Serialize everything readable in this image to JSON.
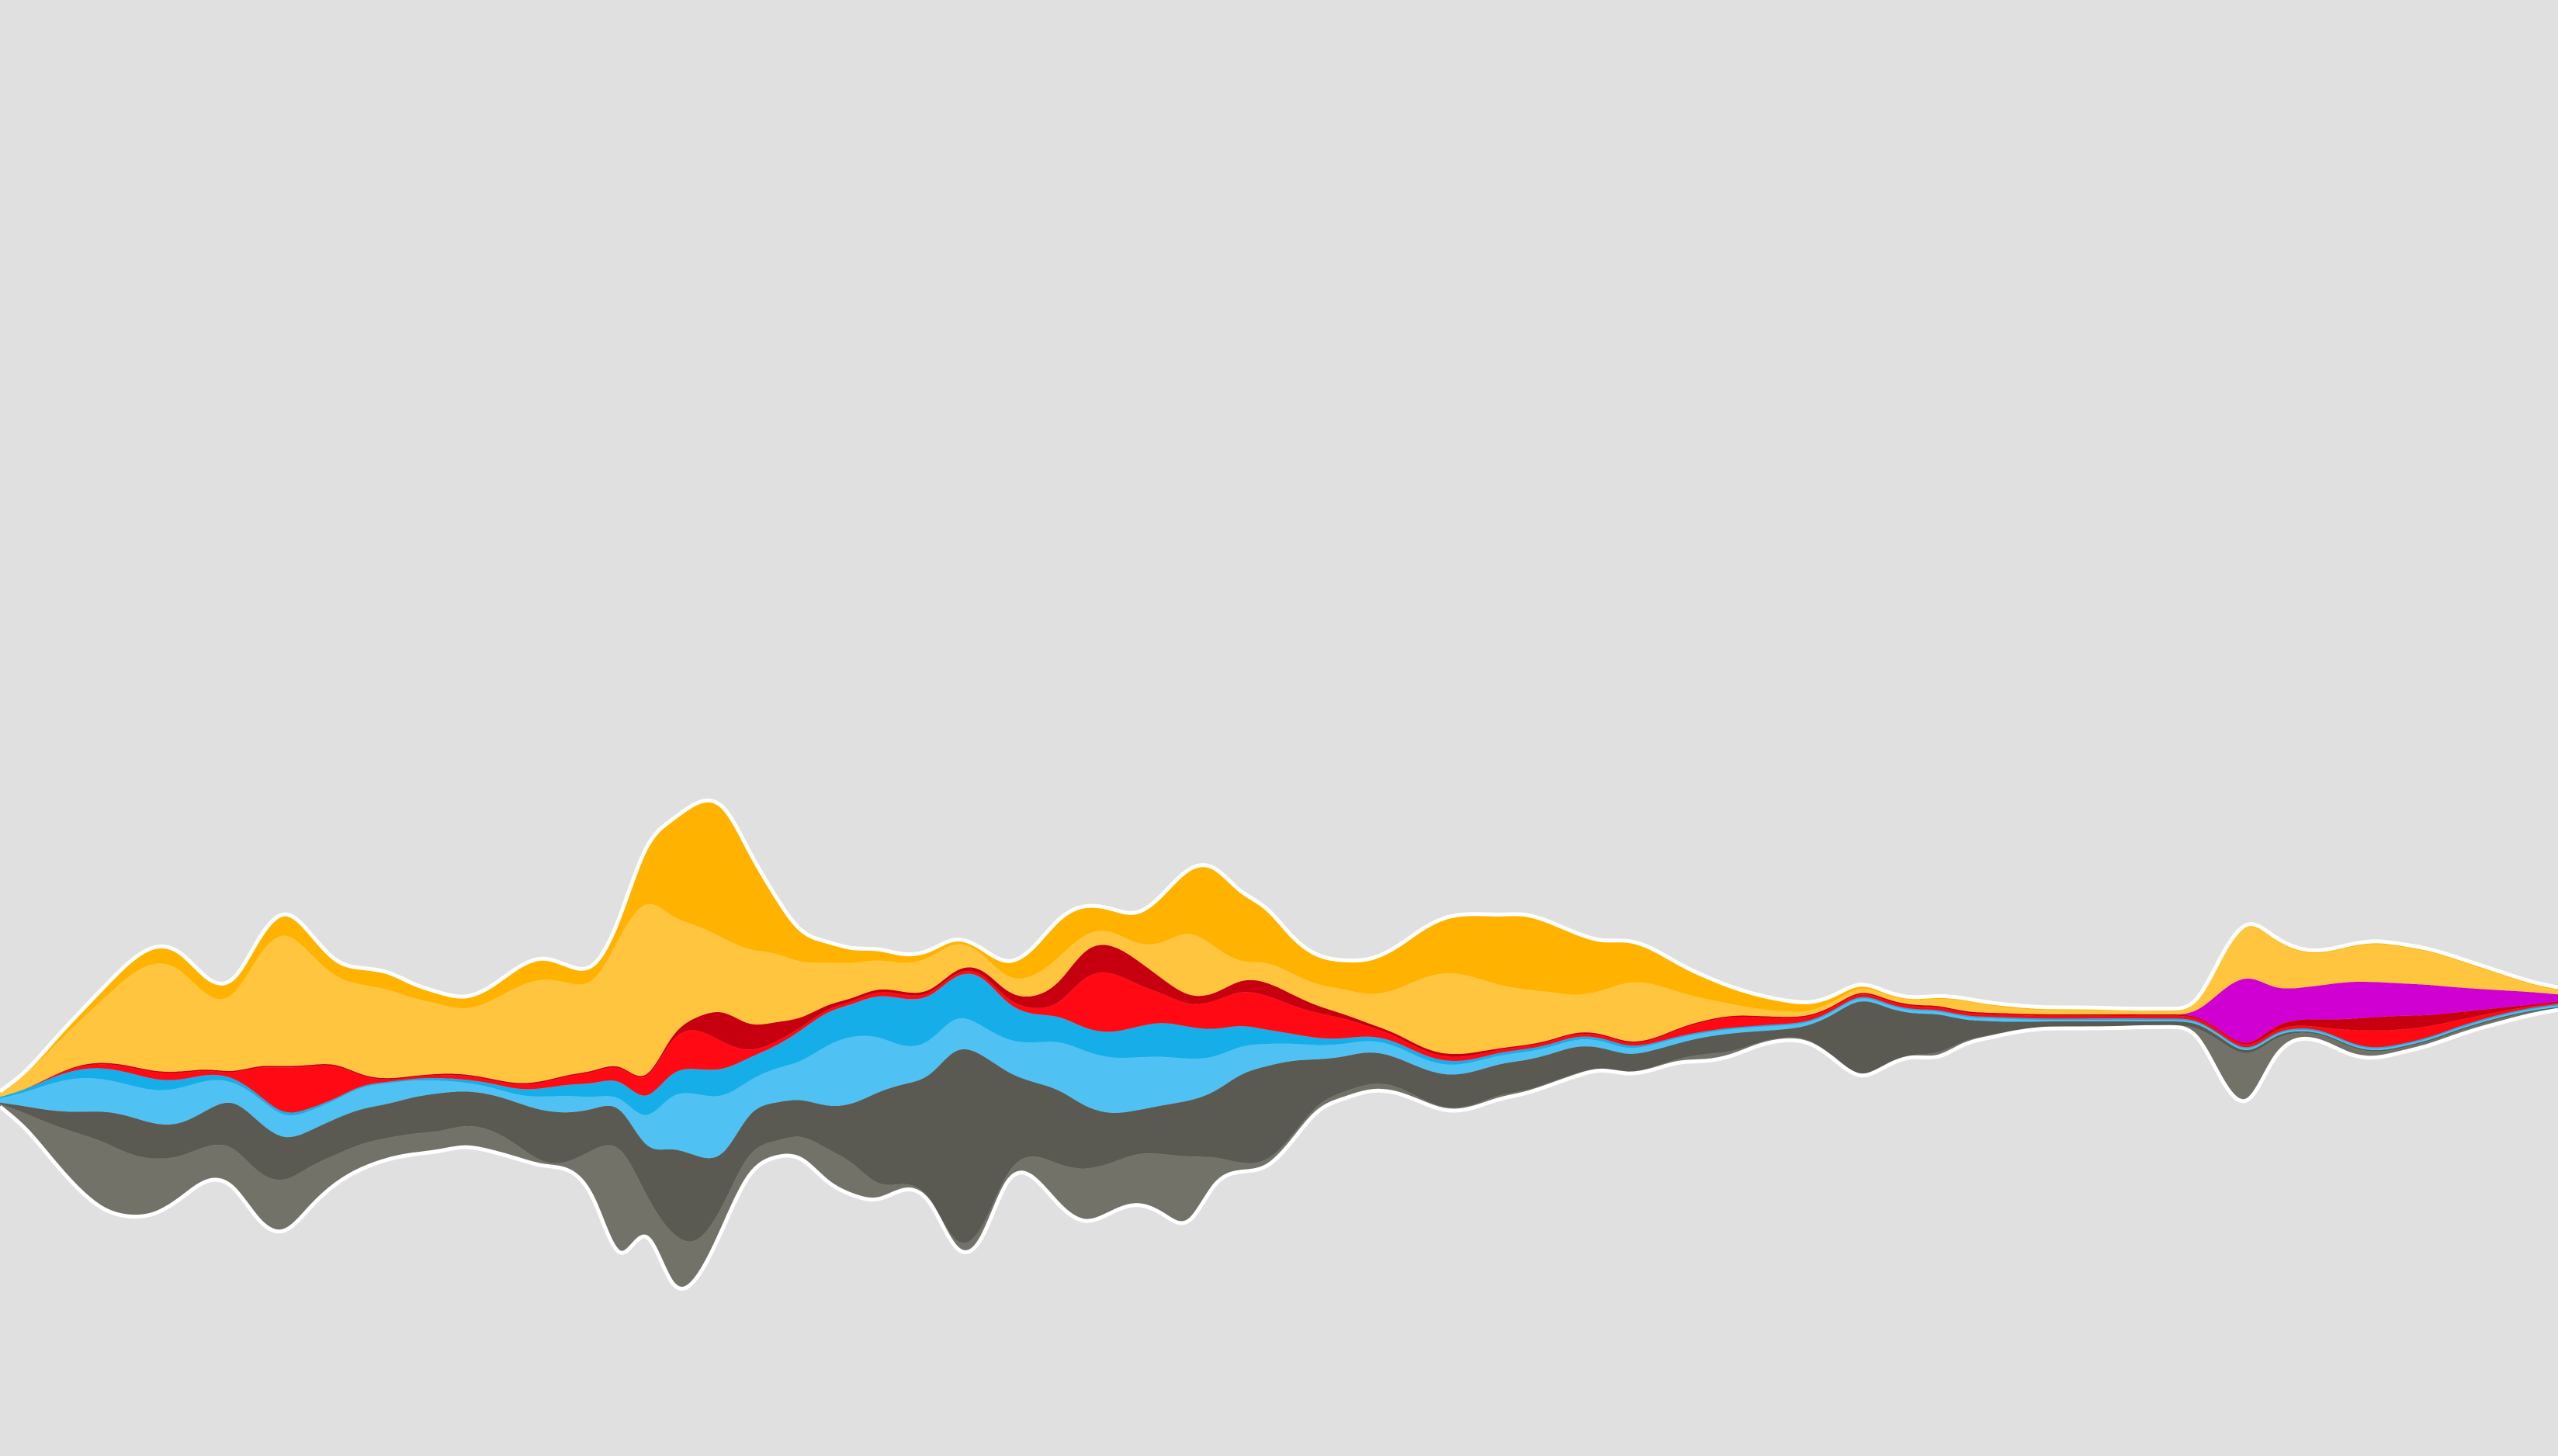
{
  "chart_data": {
    "type": "area",
    "layout": "streamgraph",
    "baseline": "wiggle",
    "smoothing": "curve-basis",
    "background": "#e0e0e0",
    "outline_color": "#ffffff",
    "grid": false,
    "legend": "none",
    "x": [
      0,
      1,
      2,
      3,
      4,
      5,
      6,
      7,
      8,
      9,
      10,
      11,
      12,
      13,
      14,
      15,
      16,
      17,
      18,
      19,
      20,
      21,
      22,
      23,
      24,
      25,
      26,
      27,
      28,
      29,
      30,
      31,
      32,
      33,
      34,
      35,
      36,
      37,
      38,
      39,
      40,
      41,
      42,
      43,
      44,
      45,
      46,
      47,
      48,
      49,
      50,
      51,
      52,
      53,
      54,
      55,
      56,
      57,
      58,
      59,
      60,
      61,
      62,
      63,
      64,
      65,
      66,
      67,
      68,
      69,
      70,
      71,
      72,
      73,
      74,
      75,
      76,
      77,
      78,
      79,
      80,
      81,
      82,
      83,
      84,
      85,
      86,
      87,
      88,
      89,
      90,
      91,
      92,
      93,
      94,
      95,
      96,
      97,
      98,
      99
    ],
    "series": [
      {
        "color": "#727268",
        "values": [
          0.2,
          1.0,
          2.5,
          4.0,
          5.0,
          4.5,
          4.0,
          3.0,
          2.3,
          2.7,
          3.5,
          3.9,
          2.9,
          2.0,
          1.8,
          1.5,
          1.5,
          1.4,
          1.5,
          1.6,
          1.0,
          0.2,
          0.2,
          3.0,
          10.0,
          1.0,
          4.5,
          2.5,
          1.5,
          1.5,
          1.0,
          1.5,
          2.5,
          2.5,
          1.0,
          0.3,
          0.2,
          0.5,
          1.0,
          0.2,
          1.5,
          3.0,
          4.0,
          3.5,
          3.5,
          4.2,
          5.5,
          1.5,
          0.5,
          0.5,
          0.4,
          0.4,
          0.5,
          0.5,
          0.5,
          0.2,
          0.2,
          0.2,
          0.3,
          0.2,
          0.2,
          0.2,
          0.1,
          0.1,
          0.2,
          0.2,
          0.6,
          0.3,
          0.2,
          0.2,
          0.2,
          0.2,
          0.1,
          0.1,
          0.1,
          0.4,
          0.2,
          0.2,
          0.1,
          0.1,
          0.1,
          0.1,
          0.1,
          0.1,
          0.1,
          0.1,
          3.0,
          4.0,
          1.0,
          0.3,
          0.5,
          0.6,
          0.4,
          0.3,
          0.3,
          0.3,
          0.3,
          0.3,
          0.2,
          0.1
        ]
      },
      {
        "color": "#5a5a52",
        "values": [
          0.1,
          0.5,
          1.0,
          1.5,
          2.2,
          2.8,
          2.5,
          2.3,
          2.5,
          3.3,
          3.8,
          3.0,
          2.5,
          2.6,
          2.5,
          2.4,
          2.6,
          2.8,
          2.4,
          2.5,
          3.0,
          3.8,
          3.6,
          2.8,
          2.8,
          3.0,
          6.5,
          6.5,
          3.2,
          2.8,
          2.8,
          2.5,
          3.0,
          4.0,
          7.0,
          7.0,
          8.0,
          15.0,
          13.0,
          6.5,
          5.0,
          5.5,
          4.5,
          3.5,
          3.0,
          3.5,
          4.0,
          4.5,
          6.5,
          7.0,
          5.5,
          3.0,
          2.5,
          2.3,
          2.0,
          2.2,
          2.4,
          2.4,
          2.2,
          2.2,
          2.0,
          2.0,
          1.4,
          1.3,
          1.2,
          1.1,
          1.2,
          1.4,
          0.8,
          0.5,
          0.8,
          3.0,
          6.0,
          4.0,
          2.8,
          3.0,
          1.4,
          1.0,
          0.6,
          0.4,
          0.4,
          0.4,
          0.4,
          0.3,
          0.3,
          0.3,
          0.3,
          0.2,
          0.2,
          0.1,
          0.1,
          0.1,
          0.1,
          0.1,
          0.1,
          0.1,
          0.1,
          0.1,
          0.1,
          0.1
        ]
      },
      {
        "color": "#4fc1f2",
        "values": [
          0.3,
          1.0,
          2.0,
          2.5,
          2.3,
          2.2,
          2.4,
          2.6,
          2.2,
          1.2,
          1.8,
          1.6,
          1.4,
          1.3,
          1.6,
          1.5,
          1.2,
          0.9,
          0.6,
          0.5,
          0.5,
          1.0,
          1.3,
          0.8,
          0.5,
          2.0,
          4.0,
          4.5,
          4.5,
          2.0,
          2.5,
          2.5,
          4.5,
          5.0,
          4.0,
          2.5,
          2.5,
          2.3,
          2.0,
          2.3,
          2.8,
          3.5,
          4.0,
          4.0,
          3.8,
          3.5,
          3.0,
          2.5,
          2.0,
          1.6,
          1.2,
          1.0,
          0.9,
          0.8,
          0.8,
          0.7,
          0.7,
          0.7,
          0.6,
          0.6,
          0.5,
          0.5,
          0.5,
          0.4,
          0.4,
          0.4,
          0.3,
          0.3,
          0.3,
          0.3,
          0.2,
          0.2,
          0.2,
          0.2,
          0.2,
          0.2,
          0.2,
          0.2,
          0.2,
          0.1,
          0.1,
          0.1,
          0.1,
          0.1,
          0.1,
          0.1,
          0.1,
          0.1,
          0.1,
          0.1,
          0.1,
          0.1,
          0.1,
          0.1,
          0.1,
          0.1,
          0.1,
          0.1,
          0.1,
          0.1
        ]
      },
      {
        "color": "#16aee8",
        "values": [
          0.1,
          0.2,
          0.4,
          0.6,
          0.8,
          0.9,
          0.8,
          0.6,
          0.4,
          0.3,
          0.2,
          0.2,
          0.2,
          0.1,
          0.1,
          0.1,
          0.1,
          0.2,
          0.2,
          0.3,
          0.4,
          0.6,
          0.8,
          1.0,
          1.2,
          1.4,
          1.6,
          1.8,
          2.0,
          1.6,
          1.5,
          2.3,
          2.4,
          2.2,
          3.0,
          3.5,
          3.2,
          2.8,
          3.8,
          2.5,
          2.0,
          1.8,
          1.6,
          1.8,
          2.2,
          2.5,
          2.3,
          2.0,
          1.5,
          1.0,
          0.7,
          0.5,
          0.4,
          0.3,
          0.3,
          0.3,
          0.3,
          0.2,
          0.2,
          0.2,
          0.2,
          0.2,
          0.2,
          0.2,
          0.1,
          0.1,
          0.1,
          0.1,
          0.1,
          0.1,
          0.1,
          0.1,
          0.1,
          0.1,
          0.1,
          0.1,
          0.1,
          0.1,
          0.1,
          0.1,
          0.1,
          0.1,
          0.1,
          0.1,
          0.1,
          0.1,
          0.1,
          0.1,
          0.1,
          0.1,
          0.1,
          0.1,
          0.1,
          0.1,
          0.1,
          0.1,
          0.1,
          0.1,
          0.1,
          0.1
        ]
      },
      {
        "color": "#ff0a14",
        "values": [
          0.0,
          0.0,
          0.1,
          0.2,
          0.3,
          0.4,
          0.5,
          0.5,
          0.3,
          0.1,
          2.0,
          3.5,
          3.0,
          2.5,
          0.5,
          0.1,
          0.1,
          0.2,
          0.3,
          0.2,
          0.3,
          0.4,
          0.6,
          0.8,
          1.0,
          1.2,
          2.5,
          3.0,
          2.0,
          0.3,
          0.3,
          0.2,
          0.2,
          0.2,
          0.3,
          0.3,
          0.2,
          0.2,
          0.2,
          0.3,
          0.4,
          0.6,
          4.0,
          4.5,
          3.0,
          2.0,
          1.5,
          2.0,
          2.5,
          2.5,
          2.0,
          1.8,
          1.5,
          0.6,
          0.4,
          0.3,
          0.3,
          0.3,
          0.2,
          0.2,
          0.2,
          0.2,
          0.2,
          0.2,
          0.2,
          0.5,
          0.7,
          0.8,
          0.6,
          0.4,
          0.3,
          0.2,
          0.2,
          0.2,
          0.2,
          0.2,
          0.2,
          0.2,
          0.2,
          0.2,
          0.2,
          0.2,
          0.2,
          0.2,
          0.2,
          0.2,
          0.2,
          0.2,
          0.2,
          0.2,
          0.2,
          1.0,
          1.3,
          1.0,
          0.8,
          0.5,
          0.3,
          0.2,
          0.1,
          0.1
        ]
      },
      {
        "color": "#c6000e",
        "values": [
          0.0,
          0.0,
          0.0,
          0.1,
          0.1,
          0.1,
          0.1,
          0.1,
          0.1,
          0.1,
          0.1,
          0.1,
          0.1,
          0.1,
          0.1,
          0.1,
          0.1,
          0.1,
          0.1,
          0.1,
          0.1,
          0.1,
          0.1,
          0.1,
          0.1,
          0.1,
          0.2,
          0.8,
          2.5,
          1.8,
          1.5,
          0.6,
          0.3,
          0.2,
          0.2,
          0.2,
          0.2,
          0.2,
          0.3,
          0.5,
          0.8,
          1.5,
          2.0,
          2.0,
          1.8,
          1.0,
          0.6,
          0.5,
          0.8,
          1.0,
          0.8,
          0.5,
          0.3,
          0.2,
          0.2,
          0.2,
          0.2,
          0.2,
          0.1,
          0.1,
          0.1,
          0.1,
          0.1,
          0.1,
          0.1,
          0.1,
          0.1,
          0.1,
          0.1,
          0.1,
          0.1,
          0.1,
          0.1,
          0.1,
          0.1,
          0.1,
          0.1,
          0.1,
          0.1,
          0.1,
          0.1,
          0.1,
          0.1,
          0.1,
          0.1,
          0.1,
          0.1,
          0.1,
          0.3,
          0.4,
          0.6,
          0.8,
          1.0,
          1.0,
          0.8,
          0.6,
          0.4,
          0.2,
          0.1,
          0.1
        ]
      },
      {
        "color": "#d000d2",
        "values": [
          0.0,
          0.0,
          0.0,
          0.0,
          0.0,
          0.0,
          0.0,
          0.0,
          0.0,
          0.0,
          0.0,
          0.0,
          0.0,
          0.0,
          0.0,
          0.0,
          0.0,
          0.0,
          0.0,
          0.0,
          0.0,
          0.0,
          0.0,
          0.0,
          0.0,
          0.0,
          0.0,
          0.0,
          0.0,
          0.0,
          0.0,
          0.0,
          0.0,
          0.0,
          0.0,
          0.0,
          0.0,
          0.0,
          0.0,
          0.0,
          0.0,
          0.0,
          0.0,
          0.0,
          0.0,
          0.0,
          0.0,
          0.0,
          0.0,
          0.0,
          0.0,
          0.0,
          0.0,
          0.0,
          0.0,
          0.0,
          0.0,
          0.0,
          0.0,
          0.0,
          0.0,
          0.0,
          0.0,
          0.0,
          0.0,
          0.0,
          0.0,
          0.0,
          0.0,
          0.0,
          0.0,
          0.0,
          0.0,
          0.0,
          0.0,
          0.0,
          0.0,
          0.0,
          0.0,
          0.0,
          0.0,
          0.0,
          0.0,
          0.0,
          0.0,
          0.0,
          3.0,
          5.5,
          2.5,
          2.2,
          2.5,
          2.7,
          2.5,
          2.3,
          2.2,
          1.8,
          1.5,
          1.2,
          0.9,
          0.5
        ]
      },
      {
        "color": "#ffc53e",
        "values": [
          0.3,
          1.0,
          2.0,
          3.0,
          4.5,
          6.5,
          8.0,
          7.5,
          5.0,
          5.0,
          8.0,
          10.0,
          8.0,
          6.0,
          6.5,
          6.5,
          5.5,
          5.0,
          4.5,
          5.5,
          7.0,
          7.5,
          6.5,
          6.0,
          9.0,
          14.0,
          8.0,
          6.5,
          5.0,
          5.5,
          5.0,
          4.0,
          3.0,
          2.5,
          2.0,
          2.0,
          2.5,
          2.0,
          1.0,
          1.0,
          1.5,
          2.0,
          1.0,
          1.0,
          1.0,
          2.5,
          5.0,
          3.5,
          1.0,
          1.5,
          1.5,
          1.5,
          1.8,
          2.0,
          3.0,
          5.0,
          6.0,
          5.5,
          4.5,
          4.0,
          3.5,
          2.5,
          3.0,
          4.5,
          4.0,
          2.5,
          1.5,
          0.8,
          0.5,
          0.4,
          0.3,
          0.3,
          0.3,
          0.3,
          0.3,
          0.5,
          0.8,
          0.5,
          0.4,
          0.3,
          0.3,
          0.3,
          0.2,
          0.2,
          0.2,
          0.2,
          2.5,
          4.0,
          3.5,
          2.5,
          2.2,
          2.5,
          2.8,
          2.6,
          2.4,
          2.0,
          1.5,
          1.0,
          0.5,
          0.3
        ]
      },
      {
        "color": "#ffb300",
        "values": [
          0.1,
          0.2,
          0.4,
          0.6,
          0.8,
          1.0,
          1.2,
          1.3,
          1.2,
          1.0,
          1.2,
          1.6,
          1.5,
          1.0,
          1.2,
          1.3,
          1.0,
          0.8,
          0.8,
          1.0,
          1.4,
          1.6,
          1.2,
          1.0,
          1.0,
          4.0,
          7.0,
          9.0,
          10.0,
          7.0,
          4.0,
          2.0,
          1.5,
          1.0,
          0.8,
          0.6,
          0.5,
          0.3,
          0.3,
          1.0,
          2.0,
          3.0,
          2.0,
          1.5,
          2.0,
          3.5,
          4.5,
          6.0,
          5.0,
          4.0,
          2.5,
          2.0,
          2.0,
          2.5,
          3.0,
          3.5,
          4.0,
          4.5,
          5.0,
          5.5,
          5.0,
          4.5,
          3.5,
          3.0,
          2.5,
          2.0,
          1.6,
          1.2,
          1.0,
          0.8,
          0.6,
          0.4,
          0.3,
          0.2,
          0.2,
          0.2,
          0.2,
          0.2,
          0.2,
          0.2,
          0.2,
          0.2,
          0.2,
          0.2,
          0.2,
          0.2,
          0.2,
          0.2,
          0.2,
          0.2,
          0.2,
          0.2,
          0.2,
          0.2,
          0.2,
          0.2,
          0.2,
          0.2,
          0.2,
          0.2
        ]
      }
    ]
  }
}
